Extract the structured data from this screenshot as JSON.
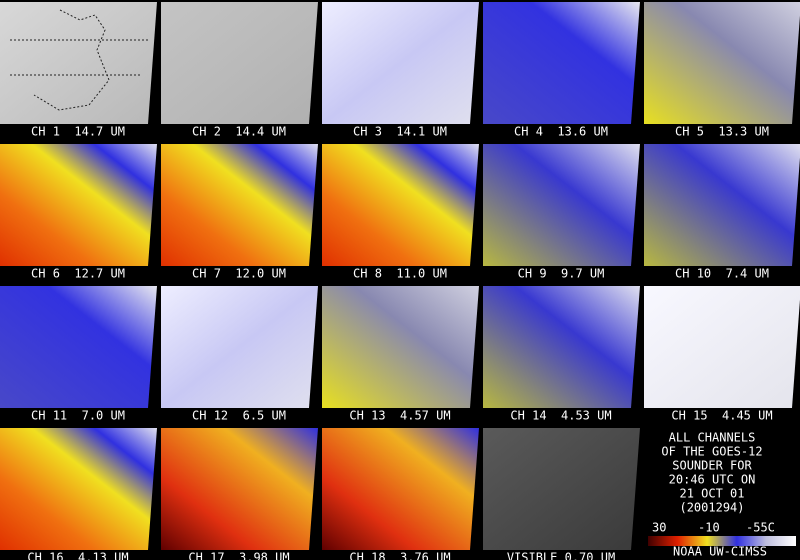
{
  "panels": [
    {
      "label": "CH 1  14.7 UM"
    },
    {
      "label": "CH 2  14.4 UM"
    },
    {
      "label": "CH 3  14.1 UM"
    },
    {
      "label": "CH 4  13.6 UM"
    },
    {
      "label": "CH 5  13.3 UM"
    },
    {
      "label": "CH 6  12.7 UM"
    },
    {
      "label": "CH 7  12.0 UM"
    },
    {
      "label": "CH 8  11.0 UM"
    },
    {
      "label": "CH 9  9.7 UM"
    },
    {
      "label": "CH 10  7.4 UM"
    },
    {
      "label": "CH 11  7.0 UM"
    },
    {
      "label": "CH 12  6.5 UM"
    },
    {
      "label": "CH 13  4.57 UM"
    },
    {
      "label": "CH 14  4.53 UM"
    },
    {
      "label": "CH 15  4.45 UM"
    },
    {
      "label": "CH 16  4.13 UM"
    },
    {
      "label": "CH 17  3.98 UM"
    },
    {
      "label": "CH 18  3.76 UM"
    },
    {
      "label": "VISIBLE 0.70 UM"
    }
  ],
  "caption": [
    "ALL CHANNELS",
    "OF THE GOES-12",
    "SOUNDER FOR",
    "20:46 UTC ON",
    "21 OCT 01",
    "(2001294)"
  ],
  "colorbar": {
    "labels": [
      "30",
      "-10",
      "-55C"
    ],
    "credit": "NOAA UW-CIMSS"
  }
}
